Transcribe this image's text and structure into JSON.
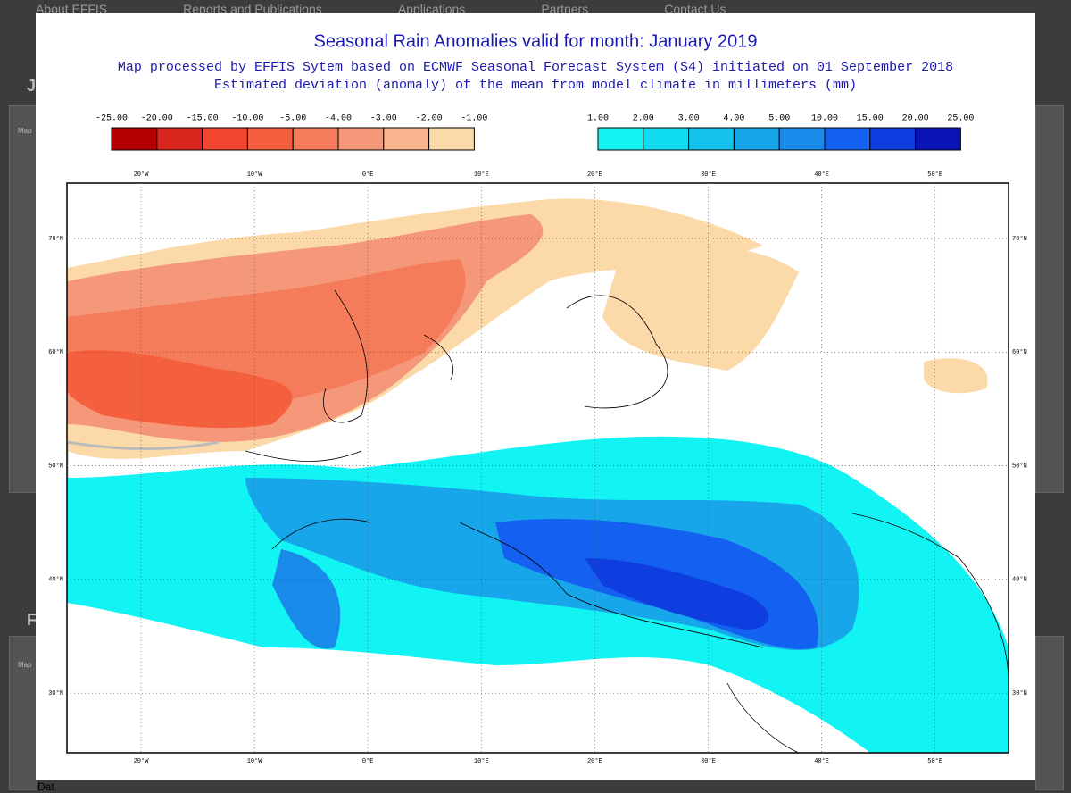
{
  "background": {
    "nav": [
      "About EFFIS",
      "Reports and Publications",
      "Applications",
      "Partners",
      "Contact Us"
    ],
    "side_letters": [
      "J",
      "F"
    ],
    "map_tag": "Map",
    "footer": "Dat"
  },
  "header": {
    "title": "Seasonal Rain Anomalies valid for month: January 2019",
    "subtitle_lines": [
      "Map processed by EFFIS Sytem based on ECMWF Seasonal Forecast System (S4) initiated on 01 September 2018",
      "Estimated deviation (anomaly) of the mean from model climate in millimeters (mm)"
    ]
  },
  "legend": {
    "negative": {
      "labels": [
        "-25.00",
        "-20.00",
        "-15.00",
        "-10.00",
        "-5.00",
        "-4.00",
        "-3.00",
        "-2.00",
        "-1.00"
      ],
      "colors": [
        "#b40000",
        "#d9261c",
        "#f0462e",
        "#f4603e",
        "#f47c5a",
        "#f5987a",
        "#f8b48c",
        "#fbd9a8"
      ]
    },
    "positive": {
      "labels": [
        "1.00",
        "2.00",
        "3.00",
        "4.00",
        "5.00",
        "10.00",
        "15.00",
        "20.00",
        "25.00"
      ],
      "colors": [
        "#12f4f4",
        "#10dcf0",
        "#14c2ec",
        "#18a6ea",
        "#1a8aea",
        "#1460f0",
        "#0f3ee0",
        "#0a14b4"
      ]
    }
  },
  "map": {
    "longitudes": [
      "20°W",
      "10°W",
      "0°E",
      "10°E",
      "20°E",
      "30°E",
      "40°E",
      "50°E"
    ],
    "latitudes": [
      "70°N",
      "60°N",
      "50°N",
      "40°N",
      "30°N"
    ]
  }
}
